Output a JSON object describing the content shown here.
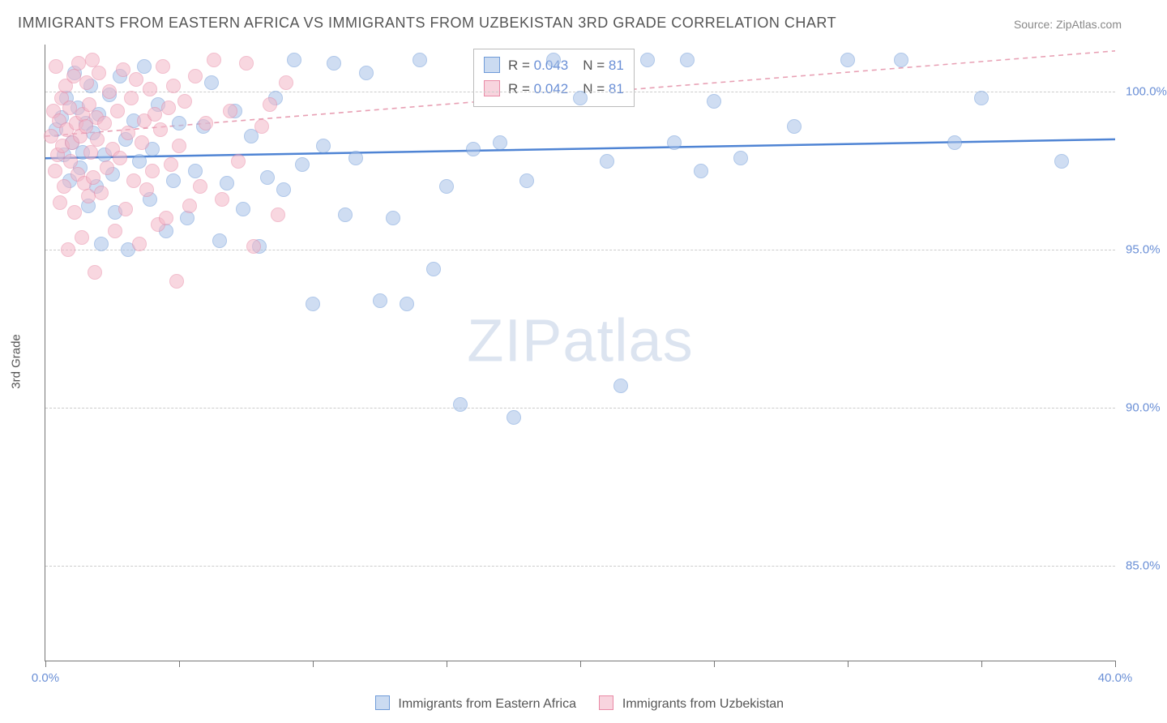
{
  "title": "IMMIGRANTS FROM EASTERN AFRICA VS IMMIGRANTS FROM UZBEKISTAN 3RD GRADE CORRELATION CHART",
  "source": "Source: ZipAtlas.com",
  "ylabel": "3rd Grade",
  "watermark_a": "ZIP",
  "watermark_b": "atlas",
  "chart": {
    "type": "scatter",
    "xlim": [
      0,
      40
    ],
    "ylim": [
      82,
      101.5
    ],
    "xticks": [
      0,
      5,
      10,
      15,
      20,
      25,
      30,
      35,
      40
    ],
    "xtick_labels": {
      "0": "0.0%",
      "40": "40.0%"
    },
    "yticks": [
      85,
      90,
      95,
      100
    ],
    "ytick_labels": {
      "85": "85.0%",
      "90": "90.0%",
      "95": "95.0%",
      "100": "100.0%"
    },
    "grid_color": "#cccccc",
    "axis_color": "#777777",
    "background_color": "#ffffff",
    "marker_radius": 9,
    "series": [
      {
        "name": "Immigrants from Eastern Africa",
        "fill": "#a9c3e8",
        "stroke": "#6f9bd8",
        "fill_opacity": 0.55,
        "r_value": "0.043",
        "n_value": "81",
        "trend": {
          "x1": 0,
          "y1": 97.9,
          "x2": 40,
          "y2": 98.5,
          "color": "#4f84d4",
          "width": 2.5,
          "dash": "none"
        },
        "points": [
          [
            0.4,
            98.8
          ],
          [
            0.6,
            99.2
          ],
          [
            0.7,
            98.0
          ],
          [
            0.8,
            99.8
          ],
          [
            0.9,
            97.2
          ],
          [
            1.0,
            98.4
          ],
          [
            1.1,
            100.6
          ],
          [
            1.2,
            99.5
          ],
          [
            1.3,
            97.6
          ],
          [
            1.4,
            98.1
          ],
          [
            1.5,
            99.0
          ],
          [
            1.6,
            96.4
          ],
          [
            1.7,
            100.2
          ],
          [
            1.8,
            98.7
          ],
          [
            1.9,
            97.0
          ],
          [
            2.0,
            99.3
          ],
          [
            2.1,
            95.2
          ],
          [
            2.2,
            98.0
          ],
          [
            2.4,
            99.9
          ],
          [
            2.5,
            97.4
          ],
          [
            2.6,
            96.2
          ],
          [
            2.8,
            100.5
          ],
          [
            3.0,
            98.5
          ],
          [
            3.1,
            95.0
          ],
          [
            3.3,
            99.1
          ],
          [
            3.5,
            97.8
          ],
          [
            3.7,
            100.8
          ],
          [
            3.9,
            96.6
          ],
          [
            4.0,
            98.2
          ],
          [
            4.2,
            99.6
          ],
          [
            4.5,
            95.6
          ],
          [
            4.8,
            97.2
          ],
          [
            5.0,
            99.0
          ],
          [
            5.3,
            96.0
          ],
          [
            5.6,
            97.5
          ],
          [
            5.9,
            98.9
          ],
          [
            6.2,
            100.3
          ],
          [
            6.5,
            95.3
          ],
          [
            6.8,
            97.1
          ],
          [
            7.1,
            99.4
          ],
          [
            7.4,
            96.3
          ],
          [
            7.7,
            98.6
          ],
          [
            8.0,
            95.1
          ],
          [
            8.3,
            97.3
          ],
          [
            8.6,
            99.8
          ],
          [
            8.9,
            96.9
          ],
          [
            9.3,
            101.0
          ],
          [
            9.6,
            97.7
          ],
          [
            10.0,
            93.3
          ],
          [
            10.4,
            98.3
          ],
          [
            10.8,
            100.9
          ],
          [
            11.2,
            96.1
          ],
          [
            11.6,
            97.9
          ],
          [
            12.0,
            100.6
          ],
          [
            12.5,
            93.4
          ],
          [
            13.0,
            96.0
          ],
          [
            13.5,
            93.3
          ],
          [
            14.0,
            101.0
          ],
          [
            14.5,
            94.4
          ],
          [
            15.0,
            97.0
          ],
          [
            15.5,
            90.1
          ],
          [
            16.0,
            98.2
          ],
          [
            17.0,
            98.4
          ],
          [
            17.5,
            89.7
          ],
          [
            18.0,
            97.2
          ],
          [
            19.0,
            101.0
          ],
          [
            20.0,
            99.8
          ],
          [
            21.0,
            97.8
          ],
          [
            21.5,
            90.7
          ],
          [
            22.5,
            101.0
          ],
          [
            23.5,
            98.4
          ],
          [
            24.0,
            101.0
          ],
          [
            24.5,
            97.5
          ],
          [
            25.0,
            99.7
          ],
          [
            26.0,
            97.9
          ],
          [
            28.0,
            98.9
          ],
          [
            30.0,
            101.0
          ],
          [
            32.0,
            101.0
          ],
          [
            34.0,
            98.4
          ],
          [
            35.0,
            99.8
          ],
          [
            38.0,
            97.8
          ]
        ]
      },
      {
        "name": "Immigrants from Uzbekistan",
        "fill": "#f3b7c8",
        "stroke": "#e98aa6",
        "fill_opacity": 0.55,
        "r_value": "0.042",
        "n_value": "81",
        "trend": {
          "x1": 0,
          "y1": 98.6,
          "x2": 40,
          "y2": 101.3,
          "color": "#e8a0b4",
          "width": 1.6,
          "dash": "6 5"
        },
        "points": [
          [
            0.2,
            98.6
          ],
          [
            0.3,
            99.4
          ],
          [
            0.35,
            97.5
          ],
          [
            0.4,
            100.8
          ],
          [
            0.45,
            98.0
          ],
          [
            0.5,
            99.1
          ],
          [
            0.55,
            96.5
          ],
          [
            0.6,
            99.8
          ],
          [
            0.65,
            98.3
          ],
          [
            0.7,
            97.0
          ],
          [
            0.75,
            100.2
          ],
          [
            0.8,
            98.8
          ],
          [
            0.85,
            95.0
          ],
          [
            0.9,
            99.5
          ],
          [
            0.95,
            97.8
          ],
          [
            1.0,
            98.4
          ],
          [
            1.05,
            100.5
          ],
          [
            1.1,
            96.2
          ],
          [
            1.15,
            99.0
          ],
          [
            1.2,
            97.4
          ],
          [
            1.25,
            100.9
          ],
          [
            1.3,
            98.6
          ],
          [
            1.35,
            95.4
          ],
          [
            1.4,
            99.3
          ],
          [
            1.45,
            97.1
          ],
          [
            1.5,
            98.9
          ],
          [
            1.55,
            100.3
          ],
          [
            1.6,
            96.7
          ],
          [
            1.65,
            99.6
          ],
          [
            1.7,
            98.1
          ],
          [
            1.75,
            101.0
          ],
          [
            1.8,
            97.3
          ],
          [
            1.85,
            94.3
          ],
          [
            1.9,
            99.2
          ],
          [
            1.95,
            98.5
          ],
          [
            2.0,
            100.6
          ],
          [
            2.1,
            96.8
          ],
          [
            2.2,
            99.0
          ],
          [
            2.3,
            97.6
          ],
          [
            2.4,
            100.0
          ],
          [
            2.5,
            98.2
          ],
          [
            2.6,
            95.6
          ],
          [
            2.7,
            99.4
          ],
          [
            2.8,
            97.9
          ],
          [
            2.9,
            100.7
          ],
          [
            3.0,
            96.3
          ],
          [
            3.1,
            98.7
          ],
          [
            3.2,
            99.8
          ],
          [
            3.3,
            97.2
          ],
          [
            3.4,
            100.4
          ],
          [
            3.5,
            95.2
          ],
          [
            3.6,
            98.4
          ],
          [
            3.7,
            99.1
          ],
          [
            3.8,
            96.9
          ],
          [
            3.9,
            100.1
          ],
          [
            4.0,
            97.5
          ],
          [
            4.1,
            99.3
          ],
          [
            4.2,
            95.8
          ],
          [
            4.3,
            98.8
          ],
          [
            4.4,
            100.8
          ],
          [
            4.5,
            96.0
          ],
          [
            4.6,
            99.5
          ],
          [
            4.7,
            97.7
          ],
          [
            4.8,
            100.2
          ],
          [
            4.9,
            94.0
          ],
          [
            5.0,
            98.3
          ],
          [
            5.2,
            99.7
          ],
          [
            5.4,
            96.4
          ],
          [
            5.6,
            100.5
          ],
          [
            5.8,
            97.0
          ],
          [
            6.0,
            99.0
          ],
          [
            6.3,
            101.0
          ],
          [
            6.6,
            96.6
          ],
          [
            6.9,
            99.4
          ],
          [
            7.2,
            97.8
          ],
          [
            7.5,
            100.9
          ],
          [
            7.8,
            95.1
          ],
          [
            8.1,
            98.9
          ],
          [
            8.4,
            99.6
          ],
          [
            8.7,
            96.1
          ],
          [
            9.0,
            100.3
          ]
        ]
      }
    ]
  },
  "legend_box": {
    "r_label": "R =",
    "n_label": "N ="
  },
  "bottom_legend": {
    "series1": "Immigrants from Eastern Africa",
    "series2": "Immigrants from Uzbekistan"
  }
}
